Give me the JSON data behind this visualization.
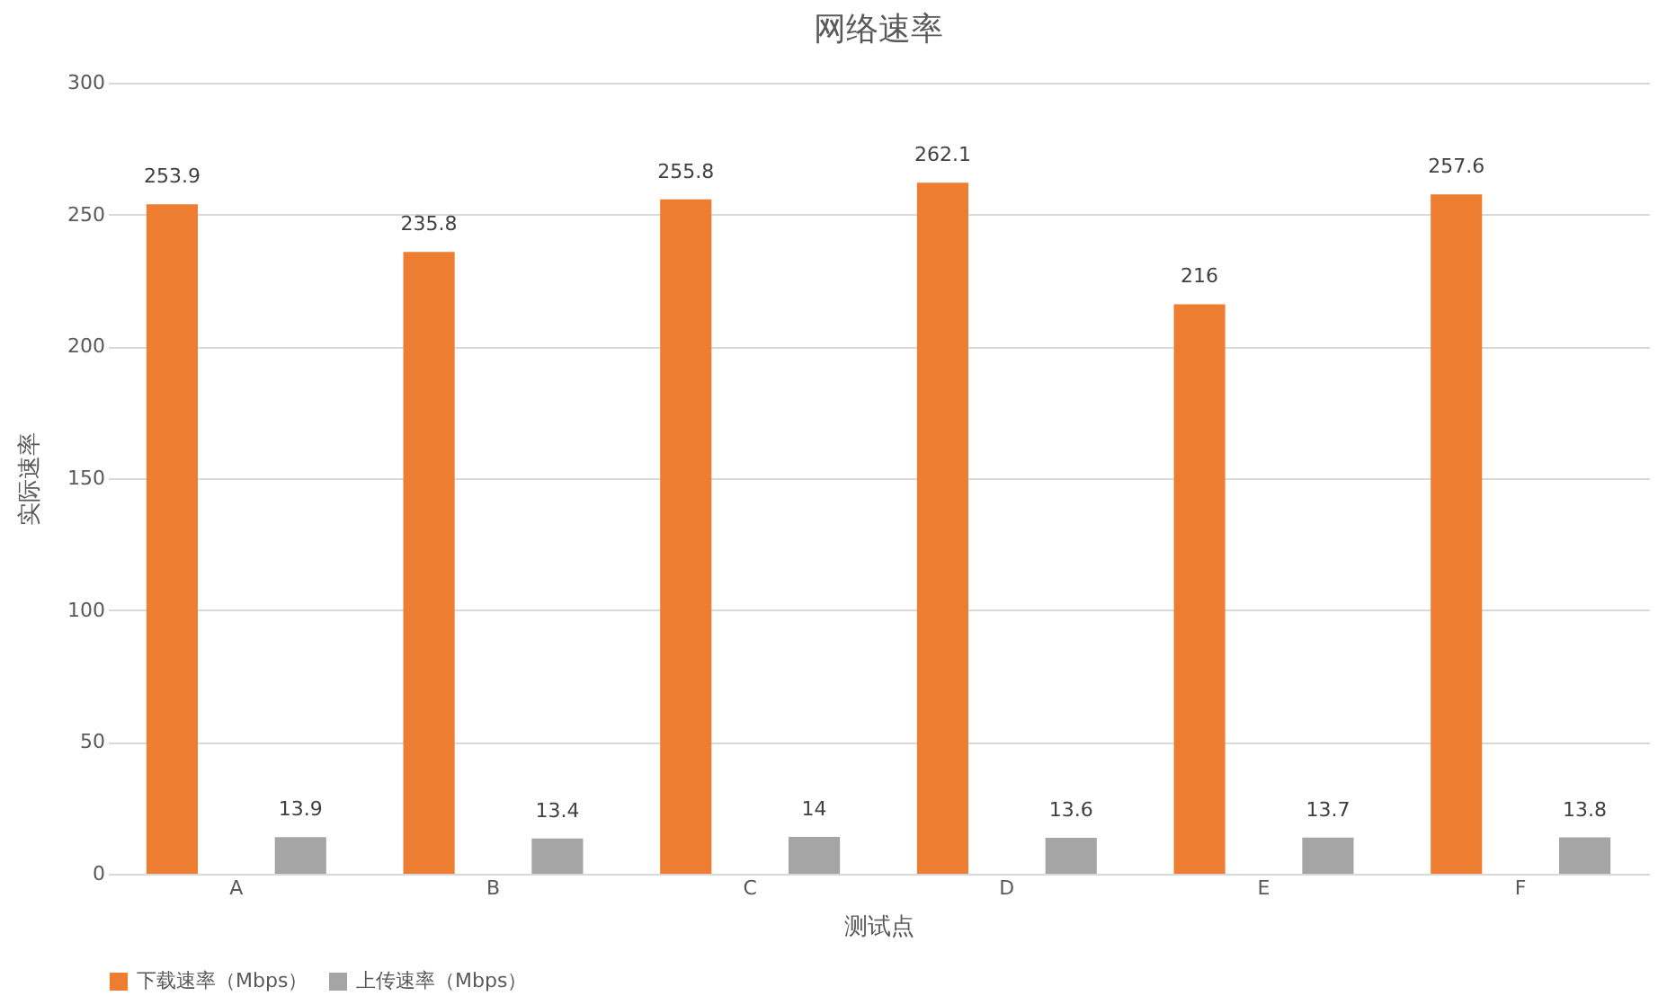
{
  "chart_data": {
    "type": "bar",
    "title": "网络速率",
    "xlabel": "测试点",
    "ylabel": "实际速率",
    "categories": [
      "A",
      "B",
      "C",
      "D",
      "E",
      "F"
    ],
    "series": [
      {
        "name": "下载速率（Mbps）",
        "color": "#ed7d31",
        "values": [
          253.9,
          235.8,
          255.8,
          262.1,
          216,
          257.6
        ]
      },
      {
        "name": "上传速率（Mbps）",
        "color": "#a5a5a5",
        "values": [
          13.9,
          13.4,
          14,
          13.6,
          13.7,
          13.8
        ]
      }
    ],
    "ylim": [
      0,
      300
    ],
    "yticks": [
      0,
      50,
      100,
      150,
      200,
      250,
      300
    ],
    "grid": "y",
    "legend": "bottom",
    "data_labels": true
  }
}
